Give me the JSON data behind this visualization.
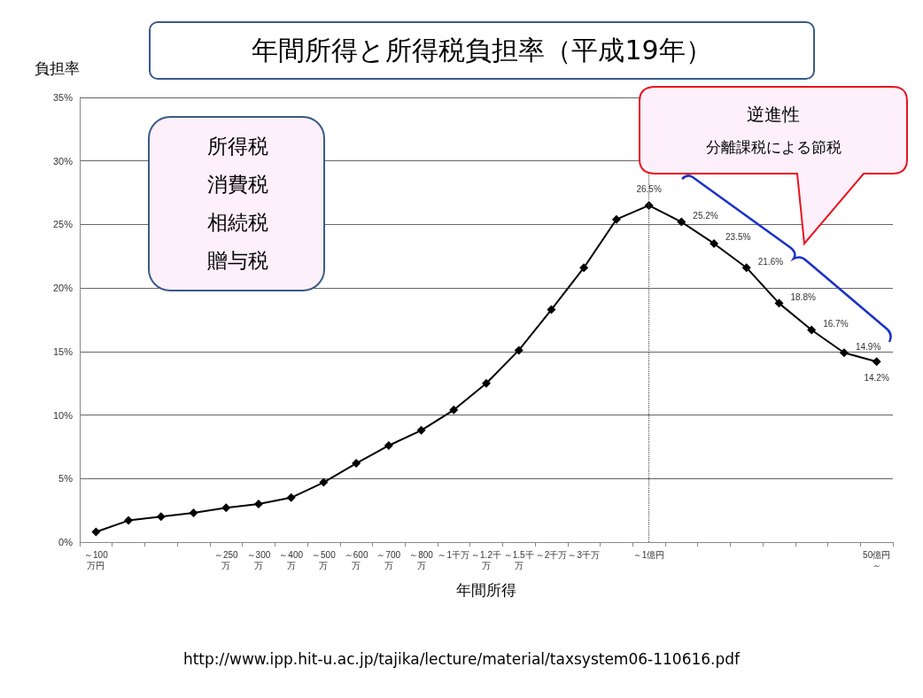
{
  "chart_data": {
    "type": "line",
    "title": "年間所得と所得税負担率（平成19年）",
    "xlabel": "年間所得",
    "ylabel": "負担率",
    "categories": [
      "～100万円",
      null,
      null,
      null,
      "～250万",
      "～300万",
      "～400万",
      "～500万",
      "～600万",
      "～700万",
      "～800万",
      "～1千万",
      "～1.2千万",
      "～1.5千万",
      "～2千万",
      "～3千万",
      null,
      "～1億円",
      null,
      null,
      null,
      null,
      null,
      null,
      "50億円～"
    ],
    "series": [
      {
        "color": "#000000",
        "values": [
          0.8,
          1.7,
          2.0,
          2.3,
          2.7,
          3.0,
          3.5,
          4.7,
          6.2,
          7.6,
          8.8,
          10.4,
          12.5,
          15.1,
          18.3,
          21.6,
          25.4,
          26.5,
          25.2,
          23.5,
          21.6,
          18.8,
          16.7,
          14.9,
          14.2
        ],
        "value_labels": [
          null,
          null,
          null,
          null,
          null,
          null,
          null,
          null,
          null,
          null,
          null,
          null,
          null,
          null,
          null,
          null,
          null,
          "26.5%",
          "25.2%",
          "23.5%",
          "21.6%",
          "18.8%",
          "16.7%",
          "14.9%",
          "14.2%"
        ]
      }
    ],
    "ylim": [
      0,
      35
    ],
    "yticks": [
      {
        "value": 0,
        "label": "0%"
      },
      {
        "value": 5,
        "label": "5%"
      },
      {
        "value": 10,
        "label": "10%"
      },
      {
        "value": 15,
        "label": "15%"
      },
      {
        "value": 20,
        "label": "20%"
      },
      {
        "value": 25,
        "label": "25%"
      },
      {
        "value": 30,
        "label": "30%"
      },
      {
        "value": 35,
        "label": "35%"
      }
    ],
    "grid": "y",
    "marker": "diamond",
    "line_style": "solid",
    "ref_lines": [
      {
        "axis": "x",
        "value": "～1億円",
        "color": "#555555",
        "line_style": "dotted"
      }
    ],
    "annotations": [
      "所得税",
      "消費税",
      "相続税",
      "贈与税",
      "逆進性",
      "分離課税による節税",
      "http://www.ipp.hit-u.ac.jp/tajika/lecture/material/taxsystem06-110616.pdf"
    ]
  }
}
